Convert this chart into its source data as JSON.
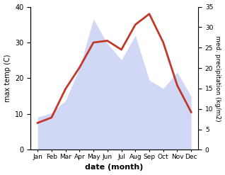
{
  "months": [
    "Jan",
    "Feb",
    "Mar",
    "Apr",
    "May",
    "Jun",
    "Jul",
    "Aug",
    "Sep",
    "Oct",
    "Nov",
    "Dec"
  ],
  "max_temp": [
    7.5,
    9.0,
    17.0,
    23.0,
    30.0,
    30.5,
    28.0,
    35.0,
    38.0,
    30.0,
    18.0,
    10.5
  ],
  "precipitation": [
    8,
    9,
    12,
    20,
    32,
    26,
    22,
    28,
    17,
    15,
    19,
    13
  ],
  "temp_color": "#c0392b",
  "precip_fill_color": "#b8c4f0",
  "background_color": "#ffffff",
  "xlabel": "date (month)",
  "ylabel_left": "max temp (C)",
  "ylabel_right": "med. precipitation (kg/m2)",
  "ylim_left": [
    0,
    40
  ],
  "ylim_right": [
    0,
    35
  ],
  "yticks_left": [
    0,
    10,
    20,
    30,
    40
  ],
  "yticks_right": [
    0,
    5,
    10,
    15,
    20,
    25,
    30,
    35
  ],
  "line_width": 2.0,
  "fill_alpha": 0.65,
  "figsize": [
    3.18,
    2.47
  ],
  "dpi": 100
}
